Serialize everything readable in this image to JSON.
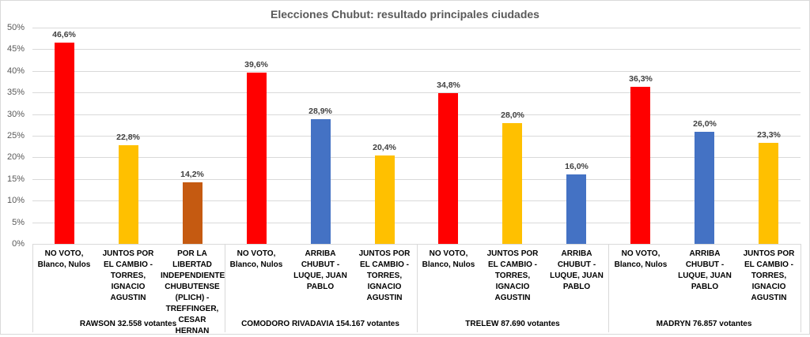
{
  "chart_data": {
    "type": "bar",
    "title": "Elecciones Chubut: resultado principales ciudades",
    "xlabel": "",
    "ylabel": "",
    "ylim": [
      0,
      50
    ],
    "yticks": [
      "0%",
      "5%",
      "10%",
      "15%",
      "20%",
      "25%",
      "30%",
      "35%",
      "40%",
      "45%",
      "50%"
    ],
    "grid": true,
    "legend": "none",
    "groups": [
      {
        "name": "RAWSON 32.558 votantes",
        "bars": [
          {
            "category": "NO VOTO, Blanco, Nulos",
            "value": 46.6,
            "label": "46,6%",
            "color": "#ff0000"
          },
          {
            "category": "JUNTOS POR EL CAMBIO - TORRES, IGNACIO AGUSTIN",
            "value": 22.8,
            "label": "22,8%",
            "color": "#ffc000"
          },
          {
            "category": "POR LA LIBERTAD INDEPENDIENTE CHUBUTENSE (PLICH) - TREFFINGER, CESAR HERNAN",
            "value": 14.2,
            "label": "14,2%",
            "color": "#c55a11"
          }
        ]
      },
      {
        "name": "COMODORO RIVADAVIA 154.167 votantes",
        "bars": [
          {
            "category": "NO VOTO, Blanco, Nulos",
            "value": 39.6,
            "label": "39,6%",
            "color": "#ff0000"
          },
          {
            "category": "ARRIBA CHUBUT - LUQUE, JUAN PABLO",
            "value": 28.9,
            "label": "28,9%",
            "color": "#4472c4"
          },
          {
            "category": "JUNTOS POR EL CAMBIO - TORRES, IGNACIO AGUSTIN",
            "value": 20.4,
            "label": "20,4%",
            "color": "#ffc000"
          }
        ]
      },
      {
        "name": "TRELEW 87.690 votantes",
        "bars": [
          {
            "category": "NO VOTO, Blanco, Nulos",
            "value": 34.8,
            "label": "34,8%",
            "color": "#ff0000"
          },
          {
            "category": "JUNTOS POR EL CAMBIO - TORRES, IGNACIO AGUSTIN",
            "value": 28.0,
            "label": "28,0%",
            "color": "#ffc000"
          },
          {
            "category": "ARRIBA CHUBUT - LUQUE, JUAN PABLO",
            "value": 16.0,
            "label": "16,0%",
            "color": "#4472c4"
          }
        ]
      },
      {
        "name": "MADRYN 76.857 votantes",
        "bars": [
          {
            "category": "NO VOTO, Blanco, Nulos",
            "value": 36.3,
            "label": "36,3%",
            "color": "#ff0000"
          },
          {
            "category": "ARRIBA CHUBUT - LUQUE, JUAN PABLO",
            "value": 26.0,
            "label": "26,0%",
            "color": "#4472c4"
          },
          {
            "category": "JUNTOS POR EL CAMBIO - TORRES, IGNACIO AGUSTIN",
            "value": 23.3,
            "label": "23,3%",
            "color": "#ffc000"
          }
        ]
      }
    ]
  }
}
